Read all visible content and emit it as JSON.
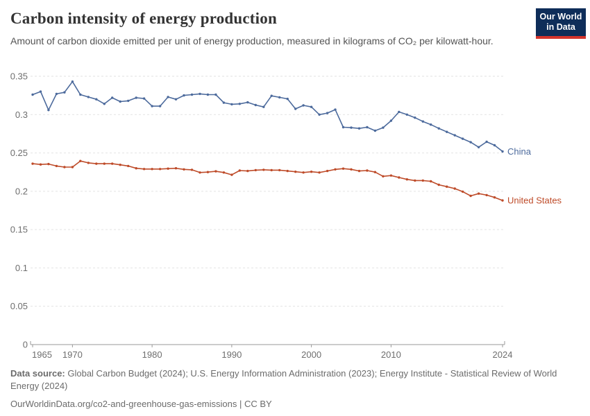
{
  "header": {
    "logo": {
      "line1": "Our World",
      "line2": "in Data"
    }
  },
  "footer": {
    "source_label": "Data source:",
    "source_text": " Global Carbon Budget (2024); U.S. Energy Information Administration (2023); Energy Institute - Statistical Review of World Energy (2024)",
    "link_text": "OurWorldinData.org/co2-and-greenhouse-gas-emissions | CC BY"
  },
  "chart_data": {
    "type": "line",
    "title": "Carbon intensity of energy production",
    "subtitle": "Amount of carbon dioxide emitted per unit of energy production, measured in kilograms of CO₂ per kilowatt-hour.",
    "xlabel": "",
    "ylabel": "",
    "ylim": [
      0,
      0.35
    ],
    "yticks": [
      0,
      0.05,
      0.1,
      0.15,
      0.2,
      0.25,
      0.3,
      0.35
    ],
    "xticks": [
      1965,
      1970,
      1980,
      1990,
      2000,
      2010,
      2024
    ],
    "grid": "horizontal-dashed",
    "legend_position": "end-of-line-labels",
    "x": [
      1965,
      1966,
      1967,
      1968,
      1969,
      1970,
      1971,
      1972,
      1973,
      1974,
      1975,
      1976,
      1977,
      1978,
      1979,
      1980,
      1981,
      1982,
      1983,
      1984,
      1985,
      1986,
      1987,
      1988,
      1989,
      1990,
      1991,
      1992,
      1993,
      1994,
      1995,
      1996,
      1997,
      1998,
      1999,
      2000,
      2001,
      2002,
      2003,
      2004,
      2005,
      2006,
      2007,
      2008,
      2009,
      2010,
      2011,
      2012,
      2013,
      2014,
      2015,
      2016,
      2017,
      2018,
      2019,
      2020,
      2021,
      2022,
      2023,
      2024
    ],
    "series": [
      {
        "name": "China",
        "color": "#4C6A9C",
        "values": [
          0.326,
          0.33,
          0.306,
          0.327,
          0.329,
          0.343,
          0.326,
          0.323,
          0.32,
          0.314,
          0.322,
          0.317,
          0.318,
          0.322,
          0.321,
          0.311,
          0.311,
          0.323,
          0.32,
          0.325,
          0.326,
          0.327,
          0.326,
          0.326,
          0.3155,
          0.3135,
          0.314,
          0.316,
          0.3125,
          0.31,
          0.3245,
          0.3225,
          0.3205,
          0.3075,
          0.312,
          0.31,
          0.3,
          0.302,
          0.3065,
          0.2835,
          0.283,
          0.282,
          0.2835,
          0.279,
          0.283,
          0.292,
          0.3035,
          0.3,
          0.296,
          0.291,
          0.287,
          0.282,
          0.2775,
          0.273,
          0.2685,
          0.264,
          0.2575,
          0.2645,
          0.26,
          0.252
        ]
      },
      {
        "name": "United States",
        "color": "#BE4B29",
        "values": [
          0.236,
          0.235,
          0.2355,
          0.233,
          0.2315,
          0.2315,
          0.2395,
          0.237,
          0.236,
          0.236,
          0.236,
          0.2345,
          0.233,
          0.23,
          0.229,
          0.229,
          0.229,
          0.2295,
          0.23,
          0.2285,
          0.228,
          0.2245,
          0.225,
          0.226,
          0.2245,
          0.2215,
          0.227,
          0.2265,
          0.2275,
          0.228,
          0.2275,
          0.2275,
          0.2265,
          0.2255,
          0.2245,
          0.2255,
          0.2245,
          0.2265,
          0.2285,
          0.2295,
          0.2285,
          0.2265,
          0.227,
          0.225,
          0.2195,
          0.2205,
          0.218,
          0.2155,
          0.214,
          0.214,
          0.213,
          0.2085,
          0.206,
          0.2035,
          0.1995,
          0.194,
          0.197,
          0.195,
          0.192,
          0.188
        ]
      }
    ]
  }
}
